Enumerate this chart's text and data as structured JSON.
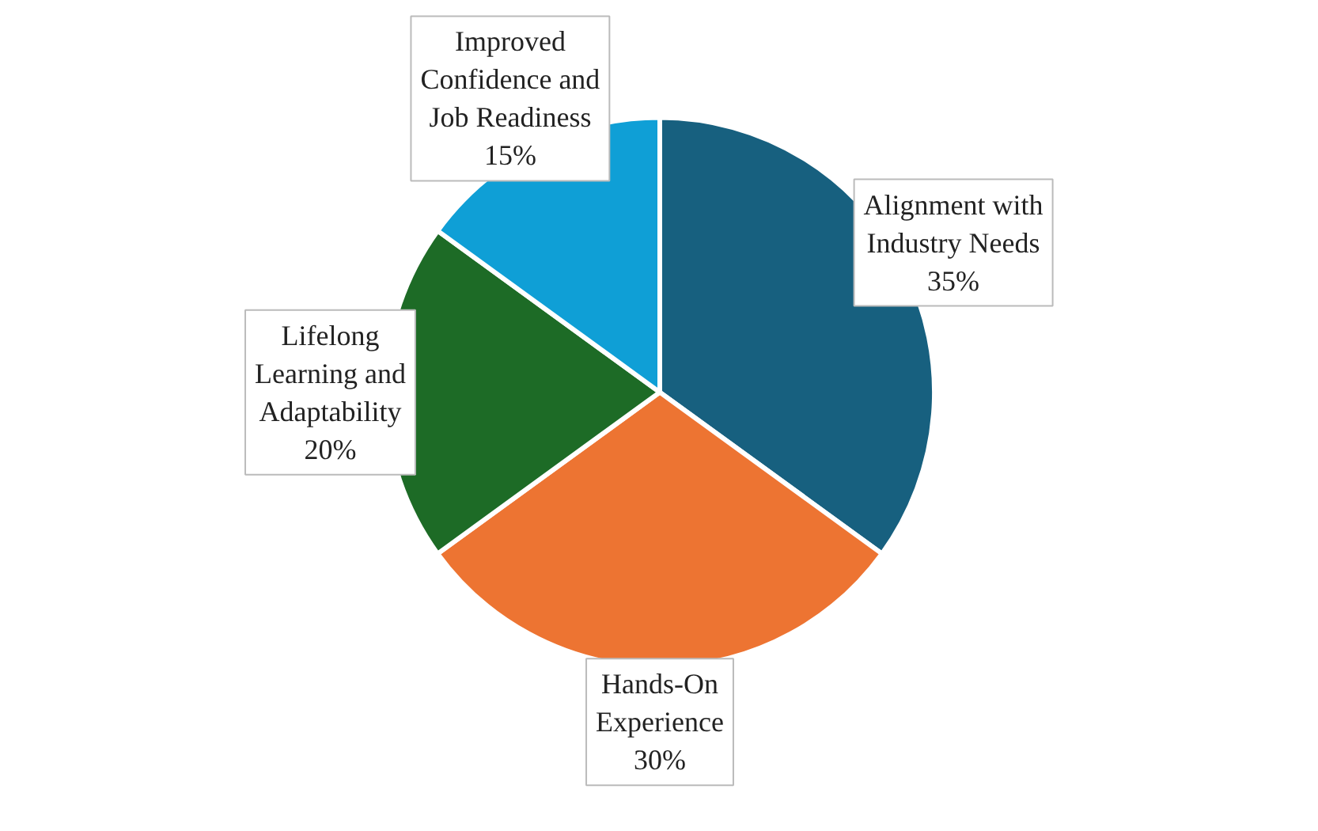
{
  "chart_data": {
    "type": "pie",
    "categories": [
      "Alignment with Industry Needs",
      "Hands-On Experience",
      "Lifelong Learning and Adaptability",
      "Improved Confidence and Job Readiness"
    ],
    "values": [
      35,
      30,
      20,
      15
    ],
    "value_labels": [
      "35%",
      "30%",
      "20%",
      "15%"
    ],
    "colors": [
      "#17607f",
      "#ed7432",
      "#1d6b26",
      "#0f9fd6"
    ]
  }
}
